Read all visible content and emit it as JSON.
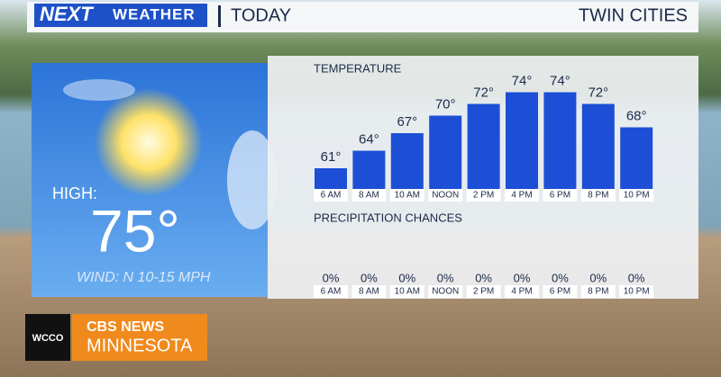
{
  "header": {
    "brand_next": "NEXT",
    "brand_weather": "WEATHER",
    "title": "TODAY",
    "location": "TWIN CITIES"
  },
  "summary": {
    "high_label": "HIGH:",
    "high_value": "75°",
    "wind": "WIND: N 10-15 MPH"
  },
  "chart_data": {
    "type": "bar",
    "title": "TEMPERATURE",
    "categories": [
      "6 AM",
      "8 AM",
      "10 AM",
      "NOON",
      "2 PM",
      "4 PM",
      "6 PM",
      "8 PM",
      "10 PM"
    ],
    "values": [
      61,
      64,
      67,
      70,
      72,
      74,
      74,
      72,
      68
    ],
    "value_labels": [
      "61°",
      "64°",
      "67°",
      "70°",
      "72°",
      "74°",
      "74°",
      "72°",
      "68°"
    ],
    "color": "#1c4fd6"
  },
  "precipitation": {
    "title": "PRECIPITATION CHANCES",
    "times": [
      "6 AM",
      "8 AM",
      "10 AM",
      "NOON",
      "2 PM",
      "4 PM",
      "6 PM",
      "8 PM",
      "10 PM"
    ],
    "chances": [
      "0%",
      "0%",
      "0%",
      "0%",
      "0%",
      "0%",
      "0%",
      "0%",
      "0%"
    ]
  },
  "footer": {
    "station": "WCCO",
    "network": "CBS NEWS",
    "market": "MINNESOTA"
  }
}
